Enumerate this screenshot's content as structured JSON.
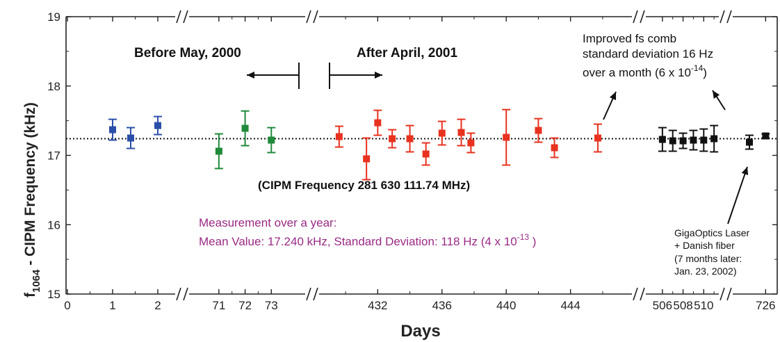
{
  "chart_data": {
    "type": "scatter",
    "title": "",
    "xlabel": "Days",
    "ylabel": {
      "pre": "f",
      "sub": "1064",
      "post": " - CIPM Frequency (kHz)"
    },
    "ylim": [
      15,
      19
    ],
    "y_ticks": [
      "15",
      "16",
      "17",
      "18",
      "19"
    ],
    "x_axis_segments": [
      {
        "range": [
          0,
          2
        ],
        "ticks": [
          "0",
          "1",
          "2"
        ]
      },
      {
        "range": [
          71,
          73
        ],
        "ticks": [
          "71",
          "72",
          "73"
        ]
      },
      {
        "range": [
          432,
          444
        ],
        "ticks": [
          "432",
          "436",
          "440",
          "444"
        ]
      },
      {
        "range": [
          506,
          510
        ],
        "ticks": [
          "506",
          "508",
          "510"
        ]
      },
      {
        "range": [
          726,
          726
        ],
        "ticks": [
          "726"
        ]
      }
    ],
    "mean_line": 17.24,
    "grid": false,
    "series": [
      {
        "color": "#2b4fa8",
        "points": [
          {
            "x": 1.0,
            "y": 17.37,
            "err": 0.15
          },
          {
            "x": 1.4,
            "y": 17.25,
            "err": 0.15
          },
          {
            "x": 2.0,
            "y": 17.43,
            "err": 0.13
          }
        ]
      },
      {
        "color": "#1f8a3a",
        "points": [
          {
            "x": 71.0,
            "y": 17.06,
            "err": 0.25
          },
          {
            "x": 72.0,
            "y": 17.39,
            "err": 0.25
          },
          {
            "x": 73.0,
            "y": 17.22,
            "err": 0.18
          }
        ]
      },
      {
        "color": "#e8321f",
        "points": [
          {
            "x": 429.6,
            "y": 17.27,
            "err": 0.15
          },
          {
            "x": 431.3,
            "y": 16.95,
            "err": 0.3
          },
          {
            "x": 432.0,
            "y": 17.47,
            "err": 0.18
          },
          {
            "x": 432.9,
            "y": 17.24,
            "err": 0.13
          },
          {
            "x": 434.0,
            "y": 17.24,
            "err": 0.19
          },
          {
            "x": 435.0,
            "y": 17.02,
            "err": 0.16
          },
          {
            "x": 436.0,
            "y": 17.32,
            "err": 0.17
          },
          {
            "x": 437.2,
            "y": 17.33,
            "err": 0.19
          },
          {
            "x": 437.8,
            "y": 17.18,
            "err": 0.14
          },
          {
            "x": 440.0,
            "y": 17.26,
            "err": 0.4
          },
          {
            "x": 442.0,
            "y": 17.36,
            "err": 0.17
          },
          {
            "x": 443.0,
            "y": 17.11,
            "err": 0.14
          },
          {
            "x": 445.7,
            "y": 17.25,
            "err": 0.2
          }
        ]
      },
      {
        "color": "#111111",
        "points": [
          {
            "x": 506.0,
            "y": 17.23,
            "err": 0.17
          },
          {
            "x": 507.0,
            "y": 17.21,
            "err": 0.15
          },
          {
            "x": 508.0,
            "y": 17.21,
            "err": 0.11
          },
          {
            "x": 509.0,
            "y": 17.22,
            "err": 0.14
          },
          {
            "x": 510.0,
            "y": 17.22,
            "err": 0.16
          },
          {
            "x": 511.0,
            "y": 17.24,
            "err": 0.19
          },
          {
            "x": 712.0,
            "y": 17.19,
            "err": 0.1
          },
          {
            "x": 726.0,
            "y": 17.28,
            "err": 0.03
          }
        ]
      }
    ],
    "annotations": {
      "before": "Before May, 2000",
      "after": "After April, 2001",
      "cipm": "(CIPM Frequency 281 630 111.74 MHz)",
      "measure_line1": "Measurement over a year:",
      "measure_line2_pre": "Mean Value:  17.240 kHz,  Standard Deviation:  118 Hz  (4 x 10",
      "measure_line2_exp": "-13",
      "measure_line2_post": " )",
      "improved_line1": "Improved fs comb",
      "improved_line2": "standard deviation 16 Hz",
      "improved_line3_pre": "over a month (6 x 10",
      "improved_line3_exp": "-14",
      "improved_line3_post": ")",
      "giga_line1": "GigaOptics Laser",
      "giga_line2": "+ Danish fiber",
      "giga_line3": "(7 months later:",
      "giga_line4": "Jan. 23, 2002)"
    }
  }
}
